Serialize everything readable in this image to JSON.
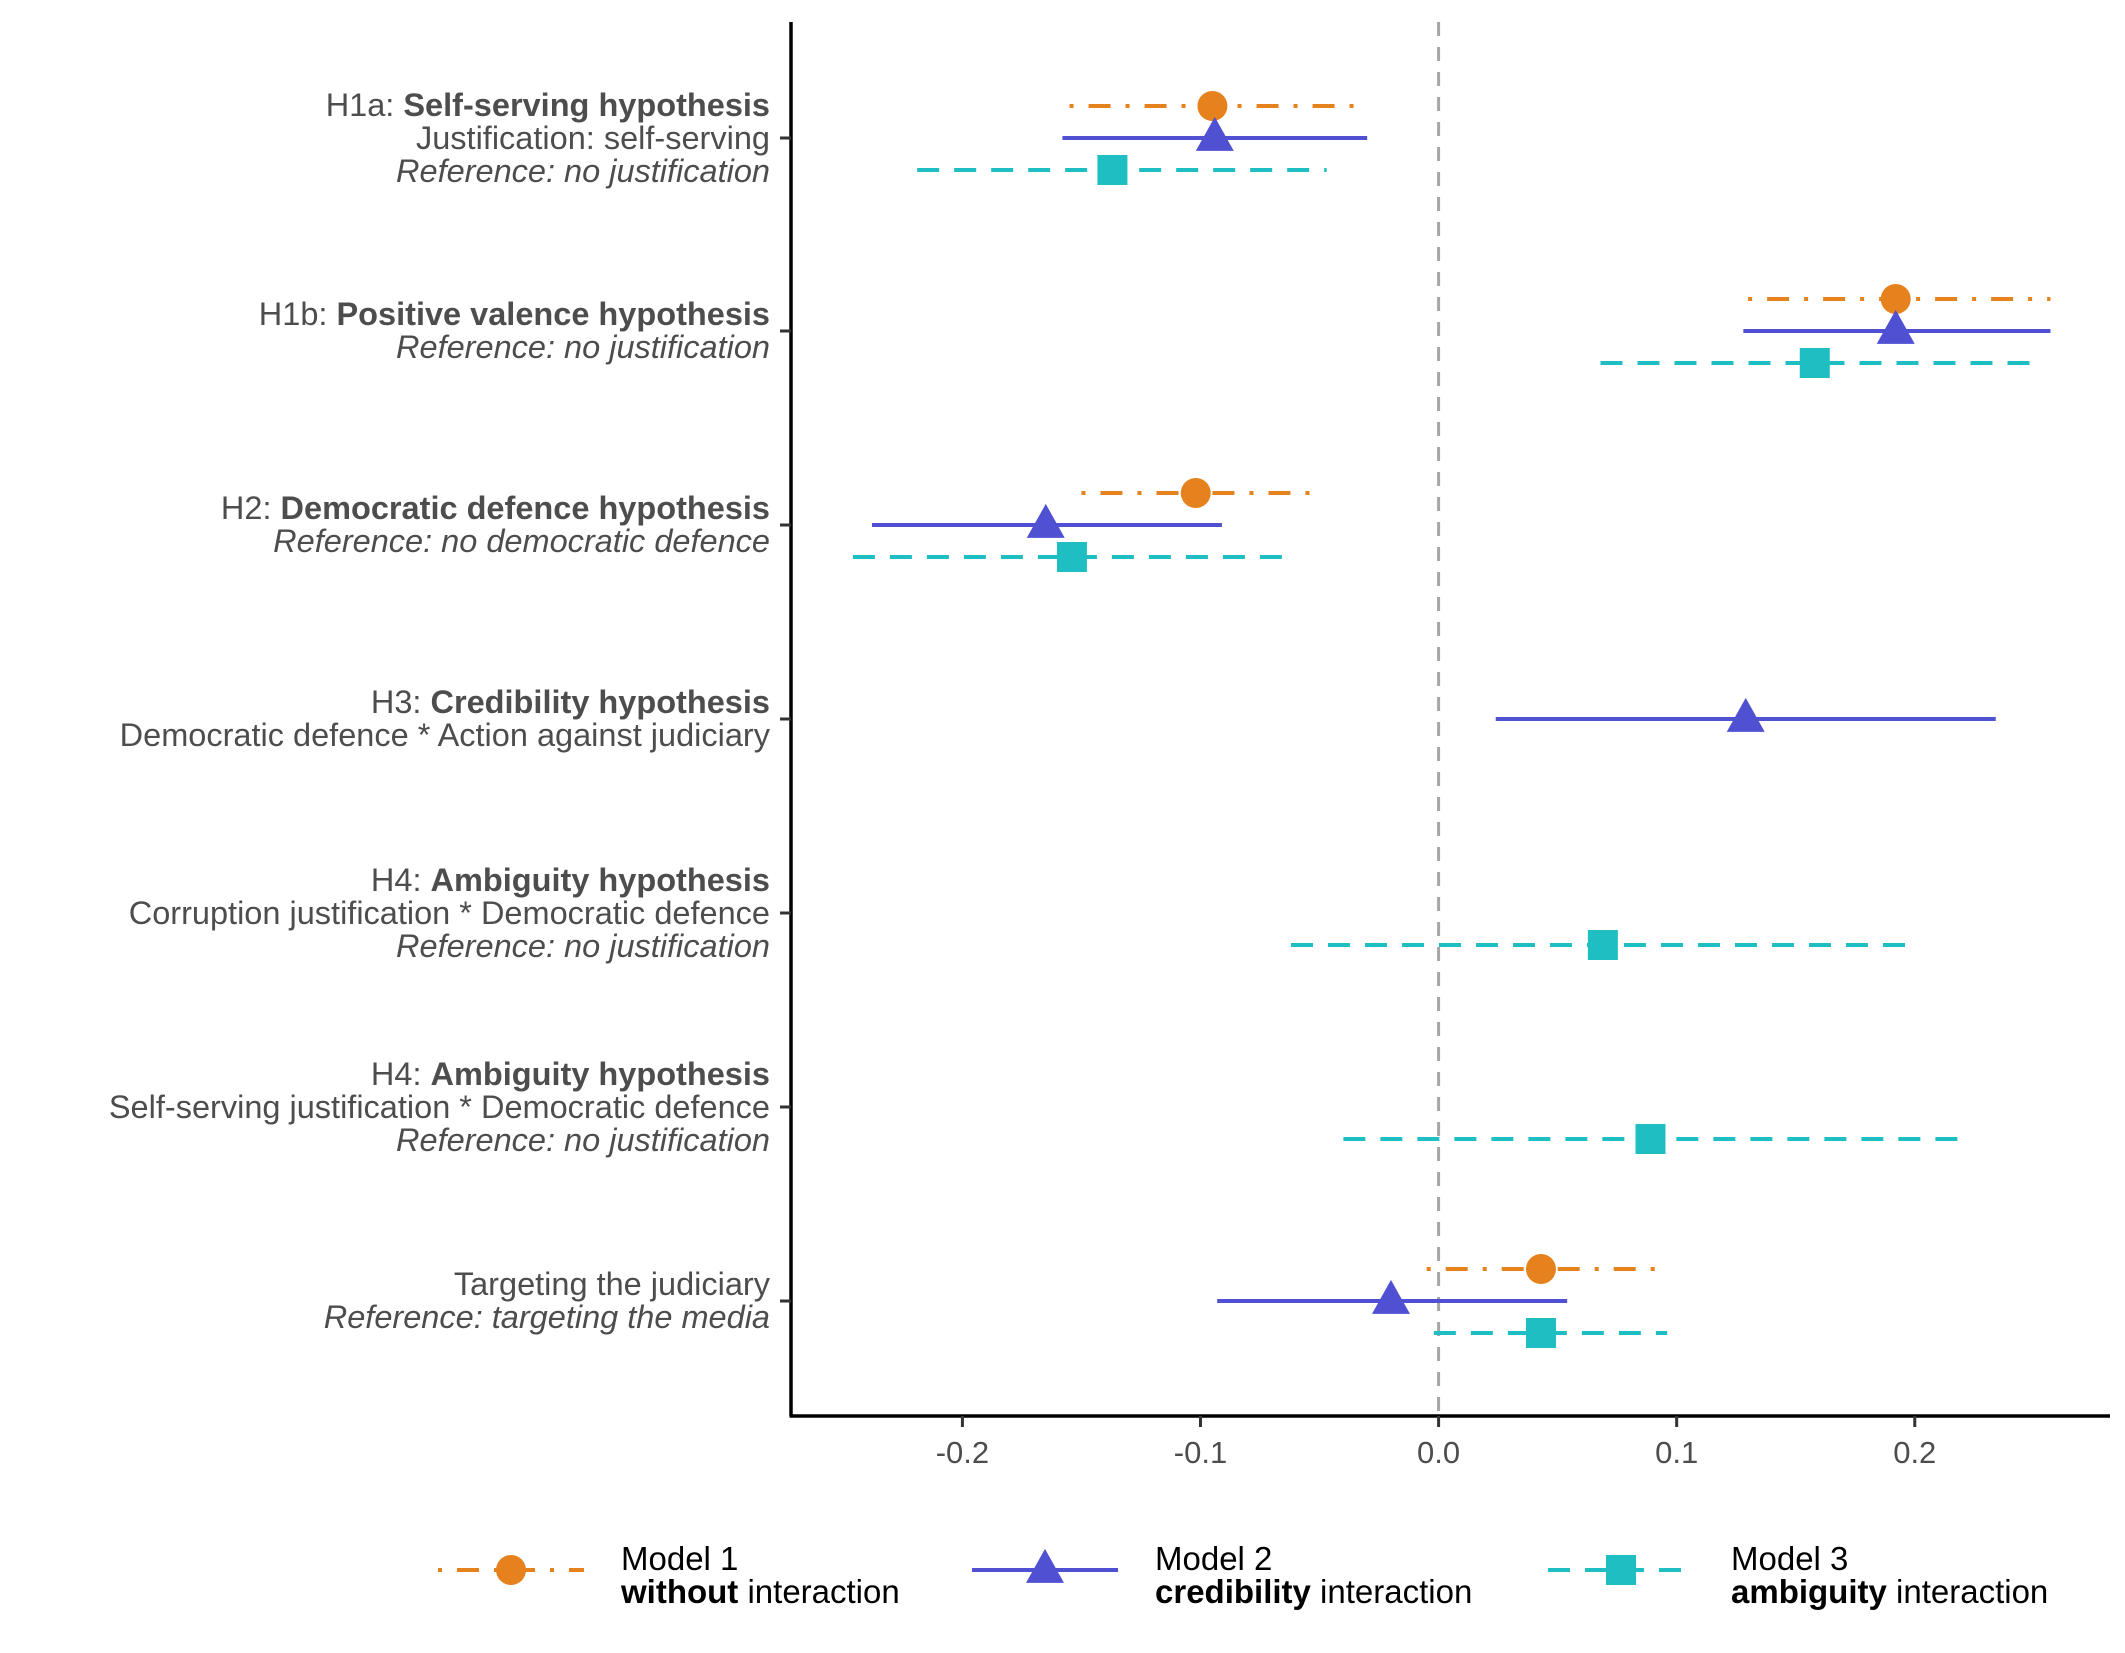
{
  "chart_data": {
    "type": "scatter",
    "subtype": "coefficient-plot",
    "xlim": [
      -0.272,
      0.282
    ],
    "x_ticks": [
      -0.2,
      -0.1,
      0.0,
      0.1,
      0.2
    ],
    "x_tick_labels": [
      "-0.2",
      "-0.1",
      "0.0",
      "0.1",
      "0.2"
    ],
    "reference_line": 0,
    "grid": false,
    "legend_position": "bottom",
    "rows": [
      {
        "lines": [
          {
            "prefix": "H1a: ",
            "bold": "Self-serving hypothesis",
            "suffix": "",
            "italic": false
          },
          {
            "prefix": "Justification: self-serving",
            "bold": "",
            "suffix": "",
            "italic": false
          },
          {
            "prefix": "Reference: no justification",
            "bold": "",
            "suffix": "",
            "italic": true
          }
        ]
      },
      {
        "lines": [
          {
            "prefix": "H1b: ",
            "bold": "Positive valence hypothesis",
            "suffix": "",
            "italic": false
          },
          {
            "prefix": "Reference: no justification",
            "bold": "",
            "suffix": "",
            "italic": true
          }
        ]
      },
      {
        "lines": [
          {
            "prefix": "H2: ",
            "bold": "Democratic defence hypothesis",
            "suffix": "",
            "italic": false
          },
          {
            "prefix": "Reference: no democratic defence",
            "bold": "",
            "suffix": "",
            "italic": true
          }
        ]
      },
      {
        "lines": [
          {
            "prefix": "H3: ",
            "bold": "Credibility hypothesis",
            "suffix": "",
            "italic": false
          },
          {
            "prefix": "Democratic defence * Action against judiciary",
            "bold": "",
            "suffix": "",
            "italic": false
          }
        ]
      },
      {
        "lines": [
          {
            "prefix": "H4: ",
            "bold": "Ambiguity hypothesis",
            "suffix": "",
            "italic": false
          },
          {
            "prefix": "Corruption justification * Democratic defence",
            "bold": "",
            "suffix": "",
            "italic": false
          },
          {
            "prefix": "Reference: no justification",
            "bold": "",
            "suffix": "",
            "italic": true
          }
        ]
      },
      {
        "lines": [
          {
            "prefix": "H4: ",
            "bold": "Ambiguity hypothesis",
            "suffix": "",
            "italic": false
          },
          {
            "prefix": "Self-serving justification * Democratic defence",
            "bold": "",
            "suffix": "",
            "italic": false
          },
          {
            "prefix": "Reference: no justification",
            "bold": "",
            "suffix": "",
            "italic": true
          }
        ]
      },
      {
        "lines": [
          {
            "prefix": "Targeting the judiciary",
            "bold": "",
            "suffix": "",
            "italic": false
          },
          {
            "prefix": "Reference: targeting the media",
            "bold": "",
            "suffix": "",
            "italic": true
          }
        ]
      }
    ],
    "series": [
      {
        "key": "model1",
        "title": "Model 1",
        "subtitle_bold": "without",
        "subtitle_rest": " interaction",
        "color": "#E6821E",
        "marker": "circle",
        "dash": "dotdash",
        "points": [
          {
            "row": 0,
            "estimate": -0.095,
            "low": -0.155,
            "high": -0.03
          },
          {
            "row": 1,
            "estimate": 0.192,
            "low": 0.13,
            "high": 0.257
          },
          {
            "row": 2,
            "estimate": -0.102,
            "low": -0.15,
            "high": -0.049
          },
          {
            "row": 6,
            "estimate": 0.043,
            "low": -0.005,
            "high": 0.096
          }
        ]
      },
      {
        "key": "model2",
        "title": "Model 2",
        "subtitle_bold": "credibility",
        "subtitle_rest": " interaction",
        "color": "#5050D2",
        "marker": "triangle",
        "dash": "solid",
        "points": [
          {
            "row": 0,
            "estimate": -0.094,
            "low": -0.158,
            "high": -0.03
          },
          {
            "row": 1,
            "estimate": 0.192,
            "low": 0.128,
            "high": 0.257
          },
          {
            "row": 2,
            "estimate": -0.165,
            "low": -0.238,
            "high": -0.091
          },
          {
            "row": 3,
            "estimate": 0.129,
            "low": 0.024,
            "high": 0.234
          },
          {
            "row": 6,
            "estimate": -0.02,
            "low": -0.093,
            "high": 0.054
          }
        ]
      },
      {
        "key": "model3",
        "title": "Model 3",
        "subtitle_bold": "ambiguity",
        "subtitle_rest": " interaction",
        "color": "#1EBEC3",
        "marker": "square",
        "dash": "dashed",
        "points": [
          {
            "row": 0,
            "estimate": -0.137,
            "low": -0.219,
            "high": -0.047
          },
          {
            "row": 1,
            "estimate": 0.158,
            "low": 0.068,
            "high": 0.25
          },
          {
            "row": 2,
            "estimate": -0.154,
            "low": -0.246,
            "high": -0.061
          },
          {
            "row": 4,
            "estimate": 0.069,
            "low": -0.062,
            "high": 0.199
          },
          {
            "row": 5,
            "estimate": 0.089,
            "low": -0.04,
            "high": 0.218
          },
          {
            "row": 6,
            "estimate": 0.043,
            "low": -0.002,
            "high": 0.096
          }
        ]
      }
    ]
  }
}
